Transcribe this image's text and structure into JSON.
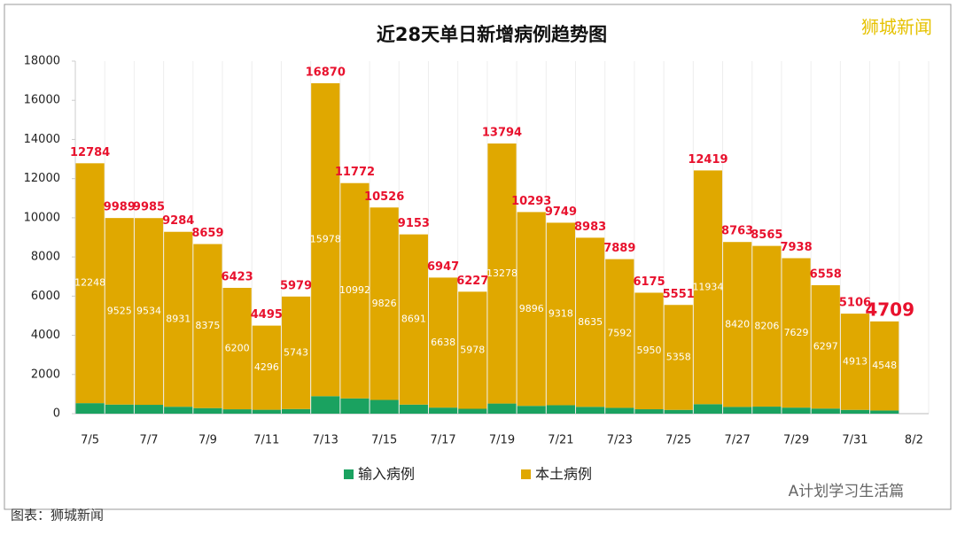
{
  "chart_data": {
    "type": "stacked-bar",
    "title": "近28天单日新增病例趋势图",
    "brand": "狮城新闻",
    "watermark": "A计划学习生活篇",
    "source": "图表：狮城新闻",
    "categories": [
      "7/5",
      null,
      "7/7",
      null,
      "7/9",
      null,
      "7/11",
      null,
      "7/13",
      null,
      "7/15",
      null,
      "7/17",
      null,
      "7/19",
      null,
      "7/21",
      null,
      "7/23",
      null,
      "7/25",
      null,
      "7/27",
      null,
      "7/29",
      null,
      "7/31",
      null,
      "8/2"
    ],
    "series": [
      {
        "name": "输入病例",
        "color": "#1aa260",
        "values": [
          536,
          464,
          451,
          353,
          284,
          223,
          199,
          236,
          892,
          780,
          700,
          462,
          309,
          249,
          516,
          397,
          431,
          348,
          297,
          225,
          193,
          484,
          344,
          359,
          309,
          261,
          193,
          161,
          null
        ]
      },
      {
        "name": "本土病例",
        "color": "#e0a800",
        "values": [
          12248,
          9525,
          9534,
          8931,
          8375,
          6200,
          4296,
          5743,
          15978,
          10992,
          9826,
          8691,
          6638,
          5978,
          13278,
          9896,
          9318,
          8635,
          7592,
          5950,
          5358,
          11934,
          8420,
          8206,
          7629,
          6297,
          4913,
          4548,
          null
        ]
      }
    ],
    "totals": [
      12784,
      9989,
      9985,
      9284,
      8659,
      6423,
      4495,
      5979,
      16870,
      11772,
      10526,
      9153,
      6947,
      6227,
      13794,
      10293,
      9749,
      8983,
      7889,
      6175,
      5551,
      12419,
      8763,
      8565,
      7938,
      6558,
      5106,
      4709,
      null
    ],
    "ylim": [
      0,
      18000
    ],
    "yticks": [
      0,
      2000,
      4000,
      6000,
      8000,
      10000,
      12000,
      14000,
      16000,
      18000
    ],
    "legend": "bottom"
  }
}
